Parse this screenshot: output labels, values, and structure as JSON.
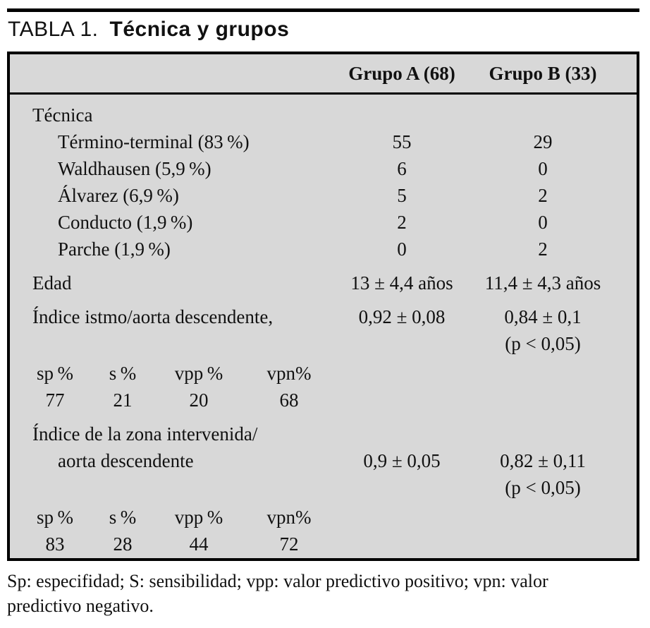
{
  "title": {
    "label": "TABLA 1.",
    "text": "Técnica y grupos"
  },
  "header": {
    "groupA": "Grupo A (68)",
    "groupB": "Grupo B (33)"
  },
  "table": {
    "rows": [
      {
        "kind": "section",
        "id": "tecnica",
        "label": "Técnica"
      },
      {
        "kind": "item",
        "id": "termino-terminal",
        "label": "Término-terminal (83 %)",
        "a": "55",
        "b": "29"
      },
      {
        "kind": "item",
        "id": "waldhausen",
        "label": "Waldhausen (5,9 %)",
        "a": "6",
        "b": "0"
      },
      {
        "kind": "item",
        "id": "alvarez",
        "label": "Álvarez (6,9 %)",
        "a": "5",
        "b": "2"
      },
      {
        "kind": "item",
        "id": "conducto",
        "label": "Conducto (1,9 %)",
        "a": "2",
        "b": "0"
      },
      {
        "kind": "item",
        "id": "parche",
        "label": "Parche (1,9 %)",
        "a": "0",
        "b": "2"
      },
      {
        "kind": "plain",
        "id": "edad",
        "label": "Edad",
        "a": "13 ± 4,4 años",
        "b": "11,4 ± 4,3 años"
      },
      {
        "kind": "plain",
        "id": "indice-istmo",
        "label": "Índice istmo/aorta descendente,",
        "a": "0,92 ± 0,08",
        "b": "0,84 ± 0,1"
      },
      {
        "kind": "pnote",
        "id": "pnote-1",
        "b": "(p < 0,05)"
      },
      {
        "kind": "stats",
        "id": "stats-head-1",
        "cells": [
          "sp %",
          "s %",
          "vpp %",
          "vpn%"
        ]
      },
      {
        "kind": "stats",
        "id": "stats-vals-1",
        "cells": [
          "77",
          "21",
          "20",
          "68"
        ]
      },
      {
        "kind": "wrap2",
        "id": "indice-zona",
        "label": "Índice de la zona intervenida/",
        "label2": "aorta descendente",
        "a": "0,9 ± 0,05",
        "b": "0,82 ± 0,11"
      },
      {
        "kind": "pnote",
        "id": "pnote-2",
        "b": "(p < 0,05)"
      },
      {
        "kind": "stats",
        "id": "stats-head-2",
        "cells": [
          "sp %",
          "s %",
          "vpp %",
          "vpn%"
        ]
      },
      {
        "kind": "stats",
        "id": "stats-vals-2",
        "cells": [
          "83",
          "28",
          "44",
          "72"
        ]
      }
    ]
  },
  "footnote": {
    "lines": [
      "Sp: especifidad; S: sensibilidad; vpp: valor predictivo positivo; vpn: valor",
      "predictivo negativo."
    ]
  },
  "colors": {
    "page_bg": "#ffffff",
    "table_bg": "#d8d8d8",
    "border": "#000000",
    "text": "#111111"
  }
}
